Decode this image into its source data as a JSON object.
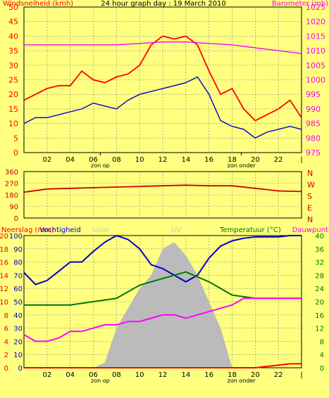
{
  "chart_data": [
    {
      "type": "line",
      "title": "24 hour graph day : 19 March 2010",
      "ylabel": "Windsnelheid (kmh)",
      "y2label": "Barometer (mb)",
      "ylim": [
        0,
        50
      ],
      "y2lim": [
        975,
        1025
      ],
      "yticks": [
        "0",
        "5",
        "10",
        "15",
        "20",
        "25",
        "30",
        "35",
        "40",
        "45",
        "50"
      ],
      "y2ticks": [
        "975",
        "980",
        "985",
        "990",
        "995",
        "1000",
        "1005",
        "1010",
        "1015",
        "1020",
        "1025"
      ],
      "xticks": [
        "02",
        "04",
        "06",
        "08",
        "10",
        "12",
        "14",
        "16",
        "18",
        "20",
        "22"
      ],
      "xmarks": [
        {
          "label": "zon op",
          "x": 6.6
        },
        {
          "label": "zon onder",
          "x": 18.8
        }
      ],
      "colors": {
        "gust": "#ff0000",
        "speed": "#0000cc",
        "baro": "#ff00ff"
      },
      "series": [
        {
          "key": "gust",
          "x": [
            0,
            1,
            2,
            3,
            4,
            5,
            6,
            7,
            8,
            9,
            10,
            11,
            12,
            13,
            14,
            15,
            16,
            17,
            18,
            19,
            20,
            21,
            22,
            23,
            24
          ],
          "values": [
            18,
            20,
            22,
            23,
            23,
            28,
            25,
            24,
            26,
            27,
            30,
            37,
            40,
            39,
            40,
            37,
            28,
            20,
            22,
            15,
            11,
            13,
            15,
            18,
            12
          ]
        },
        {
          "key": "speed",
          "x": [
            0,
            1,
            2,
            3,
            4,
            5,
            6,
            7,
            8,
            9,
            10,
            11,
            12,
            13,
            14,
            15,
            16,
            17,
            18,
            19,
            20,
            21,
            22,
            23,
            24
          ],
          "values": [
            10,
            12,
            12,
            13,
            14,
            15,
            17,
            16,
            15,
            18,
            20,
            21,
            22,
            23,
            24,
            26,
            20,
            11,
            9,
            8,
            5,
            7,
            8,
            9,
            8
          ]
        },
        {
          "key": "baro",
          "x": [
            0,
            2,
            4,
            6,
            8,
            10,
            12,
            14,
            16,
            18,
            20,
            22,
            24
          ],
          "values": [
            1012,
            1012,
            1012,
            1012,
            1012,
            1012.5,
            1013,
            1013,
            1012.5,
            1012,
            1011,
            1010,
            1009
          ]
        }
      ]
    },
    {
      "type": "line",
      "ylim": [
        0,
        360
      ],
      "yticks": [
        "0",
        "90",
        "180",
        "270",
        "360"
      ],
      "compass": [
        "N",
        "W",
        "S",
        "E",
        "N"
      ],
      "series": [
        {
          "key": "dir",
          "color": "#cc0000",
          "x": [
            0,
            2,
            4,
            6,
            8,
            10,
            12,
            14,
            16,
            18,
            20,
            22,
            24
          ],
          "values": [
            200,
            225,
            230,
            235,
            240,
            245,
            250,
            255,
            250,
            250,
            230,
            210,
            205
          ]
        }
      ]
    },
    {
      "type": "line",
      "ylabel": "Neerslag (mm)",
      "ylabel_humidity": "Vochtigheid",
      "solar_label": "Solar",
      "uv_label": "UV",
      "y2label": "Temperatuur (°C)",
      "y2label_dew": "Dauwpunt",
      "ylim": [
        0,
        100
      ],
      "yticks_left": [
        "0",
        "2",
        "4",
        "6",
        "8",
        "10",
        "12",
        "14",
        "16",
        "18",
        "20"
      ],
      "yticks_pct": [
        "0",
        "10",
        "20",
        "30",
        "40",
        "50",
        "60",
        "70",
        "80",
        "90",
        "100"
      ],
      "y2ticks": [
        "0",
        "4",
        "8",
        "12",
        "16",
        "20",
        "24",
        "28",
        "32",
        "36",
        "40"
      ],
      "series": [
        {
          "key": "solar",
          "color": "#bbbbbb",
          "x": [
            0,
            6,
            7,
            8,
            9,
            10,
            11,
            12,
            13,
            14,
            15,
            16,
            17,
            18,
            24
          ],
          "values": [
            0,
            0,
            4,
            30,
            45,
            60,
            70,
            90,
            95,
            85,
            70,
            50,
            30,
            0,
            0
          ]
        },
        {
          "key": "humidity",
          "color": "#0000cc",
          "x": [
            0,
            1,
            2,
            3,
            4,
            5,
            6,
            7,
            8,
            9,
            10,
            11,
            12,
            13,
            14,
            15,
            16,
            17,
            18,
            19,
            20,
            21,
            22,
            23,
            24
          ],
          "values": [
            72,
            63,
            66,
            73,
            80,
            80,
            88,
            95,
            100,
            97,
            90,
            78,
            75,
            70,
            65,
            70,
            83,
            92,
            96,
            98,
            99,
            99,
            99,
            100,
            100
          ]
        },
        {
          "key": "temp",
          "color": "#007700",
          "x": [
            0,
            2,
            4,
            6,
            8,
            10,
            12,
            14,
            16,
            18,
            20,
            22,
            24
          ],
          "values": [
            19,
            19,
            19,
            20,
            21,
            25,
            27,
            29,
            26,
            22,
            21,
            21,
            21
          ]
        },
        {
          "key": "dew",
          "color": "#ff00ff",
          "x": [
            0,
            1,
            2,
            3,
            4,
            5,
            6,
            7,
            8,
            9,
            10,
            11,
            12,
            13,
            14,
            15,
            16,
            17,
            18,
            19,
            24
          ],
          "values": [
            10,
            8,
            8,
            9,
            11,
            11,
            12,
            13,
            13,
            14,
            14,
            15,
            16,
            16,
            15,
            16,
            17,
            18,
            19,
            21,
            21
          ]
        },
        {
          "key": "rain",
          "color": "#ff0000",
          "x": [
            0,
            18,
            19,
            20,
            21,
            22,
            23,
            24
          ],
          "values": [
            0,
            0,
            0,
            0,
            0.2,
            0.4,
            0.6,
            0.6
          ]
        }
      ]
    }
  ]
}
